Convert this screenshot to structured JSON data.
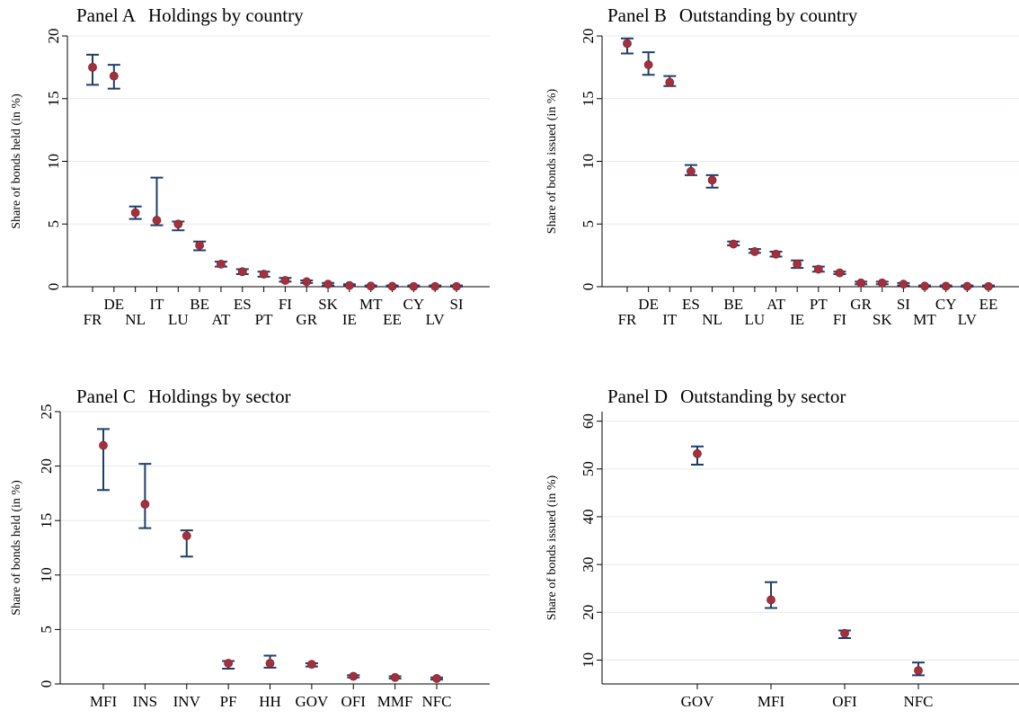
{
  "chart_data": [
    {
      "type": "scatter",
      "panel": "Panel A",
      "title": "Holdings by country",
      "ylabel": "Share of bonds held (in %)",
      "ylim": [
        0,
        20
      ],
      "yticks": [
        0,
        5,
        10,
        15,
        20
      ],
      "categories": [
        "FR",
        "DE",
        "NL",
        "IT",
        "LU",
        "BE",
        "AT",
        "ES",
        "PT",
        "FI",
        "GR",
        "SK",
        "IE",
        "MT",
        "EE",
        "CY",
        "LV",
        "SI"
      ],
      "values": [
        17.5,
        16.8,
        5.9,
        5.3,
        5.0,
        3.3,
        1.8,
        1.2,
        1.0,
        0.5,
        0.4,
        0.2,
        0.1,
        0.05,
        0.03,
        0.02,
        0.02,
        0.02
      ],
      "ci_low": [
        16.1,
        15.8,
        5.4,
        4.9,
        4.5,
        2.9,
        1.6,
        1.0,
        0.8,
        0.4,
        0.3,
        0.1,
        0.05,
        0.0,
        0.0,
        0.0,
        0.0,
        0.0
      ],
      "ci_high": [
        18.5,
        17.7,
        6.4,
        8.7,
        5.2,
        3.6,
        2.0,
        1.4,
        1.2,
        0.7,
        0.5,
        0.3,
        0.2,
        0.1,
        0.1,
        0.1,
        0.1,
        0.1
      ],
      "grid": true
    },
    {
      "type": "scatter",
      "panel": "Panel B",
      "title": "Outstanding by country",
      "ylabel": "Share of bonds issued (in %)",
      "ylim": [
        0,
        20
      ],
      "yticks": [
        0,
        5,
        10,
        15,
        20
      ],
      "categories": [
        "FR",
        "DE",
        "IT",
        "ES",
        "NL",
        "BE",
        "LU",
        "AT",
        "IE",
        "PT",
        "FI",
        "GR",
        "SK",
        "SI",
        "MT",
        "CY",
        "LV",
        "EE"
      ],
      "values": [
        19.4,
        17.7,
        16.3,
        9.2,
        8.5,
        3.4,
        2.8,
        2.6,
        1.8,
        1.4,
        1.1,
        0.3,
        0.3,
        0.2,
        0.05,
        0.04,
        0.03,
        0.02
      ],
      "ci_low": [
        18.6,
        16.9,
        16.0,
        8.9,
        7.9,
        3.3,
        2.7,
        2.4,
        1.5,
        1.2,
        1.0,
        0.2,
        0.2,
        0.1,
        0.0,
        0.0,
        0.0,
        0.0
      ],
      "ci_high": [
        19.8,
        18.7,
        16.8,
        9.7,
        8.9,
        3.6,
        3.0,
        2.8,
        2.1,
        1.6,
        1.2,
        0.4,
        0.4,
        0.3,
        0.1,
        0.1,
        0.1,
        0.1
      ],
      "grid": true
    },
    {
      "type": "scatter",
      "panel": "Panel C",
      "title": "Holdings by sector",
      "ylabel": "Share of bonds held (in %)",
      "ylim": [
        0,
        25
      ],
      "yticks": [
        0,
        5,
        10,
        15,
        20,
        25
      ],
      "categories": [
        "MFI",
        "INS",
        "INV",
        "PF",
        "HH",
        "GOV",
        "OFI",
        "MMF",
        "NFC"
      ],
      "values": [
        21.9,
        16.5,
        13.6,
        1.9,
        1.9,
        1.8,
        0.7,
        0.6,
        0.5
      ],
      "ci_low": [
        17.8,
        14.3,
        11.7,
        1.4,
        1.5,
        1.6,
        0.6,
        0.5,
        0.4
      ],
      "ci_high": [
        23.4,
        20.2,
        14.1,
        2.1,
        2.6,
        1.9,
        0.8,
        0.7,
        0.6
      ],
      "grid": true
    },
    {
      "type": "scatter",
      "panel": "Panel D",
      "title": "Outstanding by sector",
      "ylabel": "Share of bonds issued (in %)",
      "ylim": [
        5,
        62
      ],
      "yticks": [
        10,
        20,
        30,
        40,
        50,
        60
      ],
      "categories": [
        "GOV",
        "MFI",
        "OFI",
        "NFC"
      ],
      "values": [
        53.2,
        22.6,
        15.6,
        7.8
      ],
      "ci_low": [
        50.9,
        20.9,
        14.6,
        6.8
      ],
      "ci_high": [
        54.7,
        26.3,
        16.2,
        9.5
      ],
      "grid": true
    }
  ]
}
